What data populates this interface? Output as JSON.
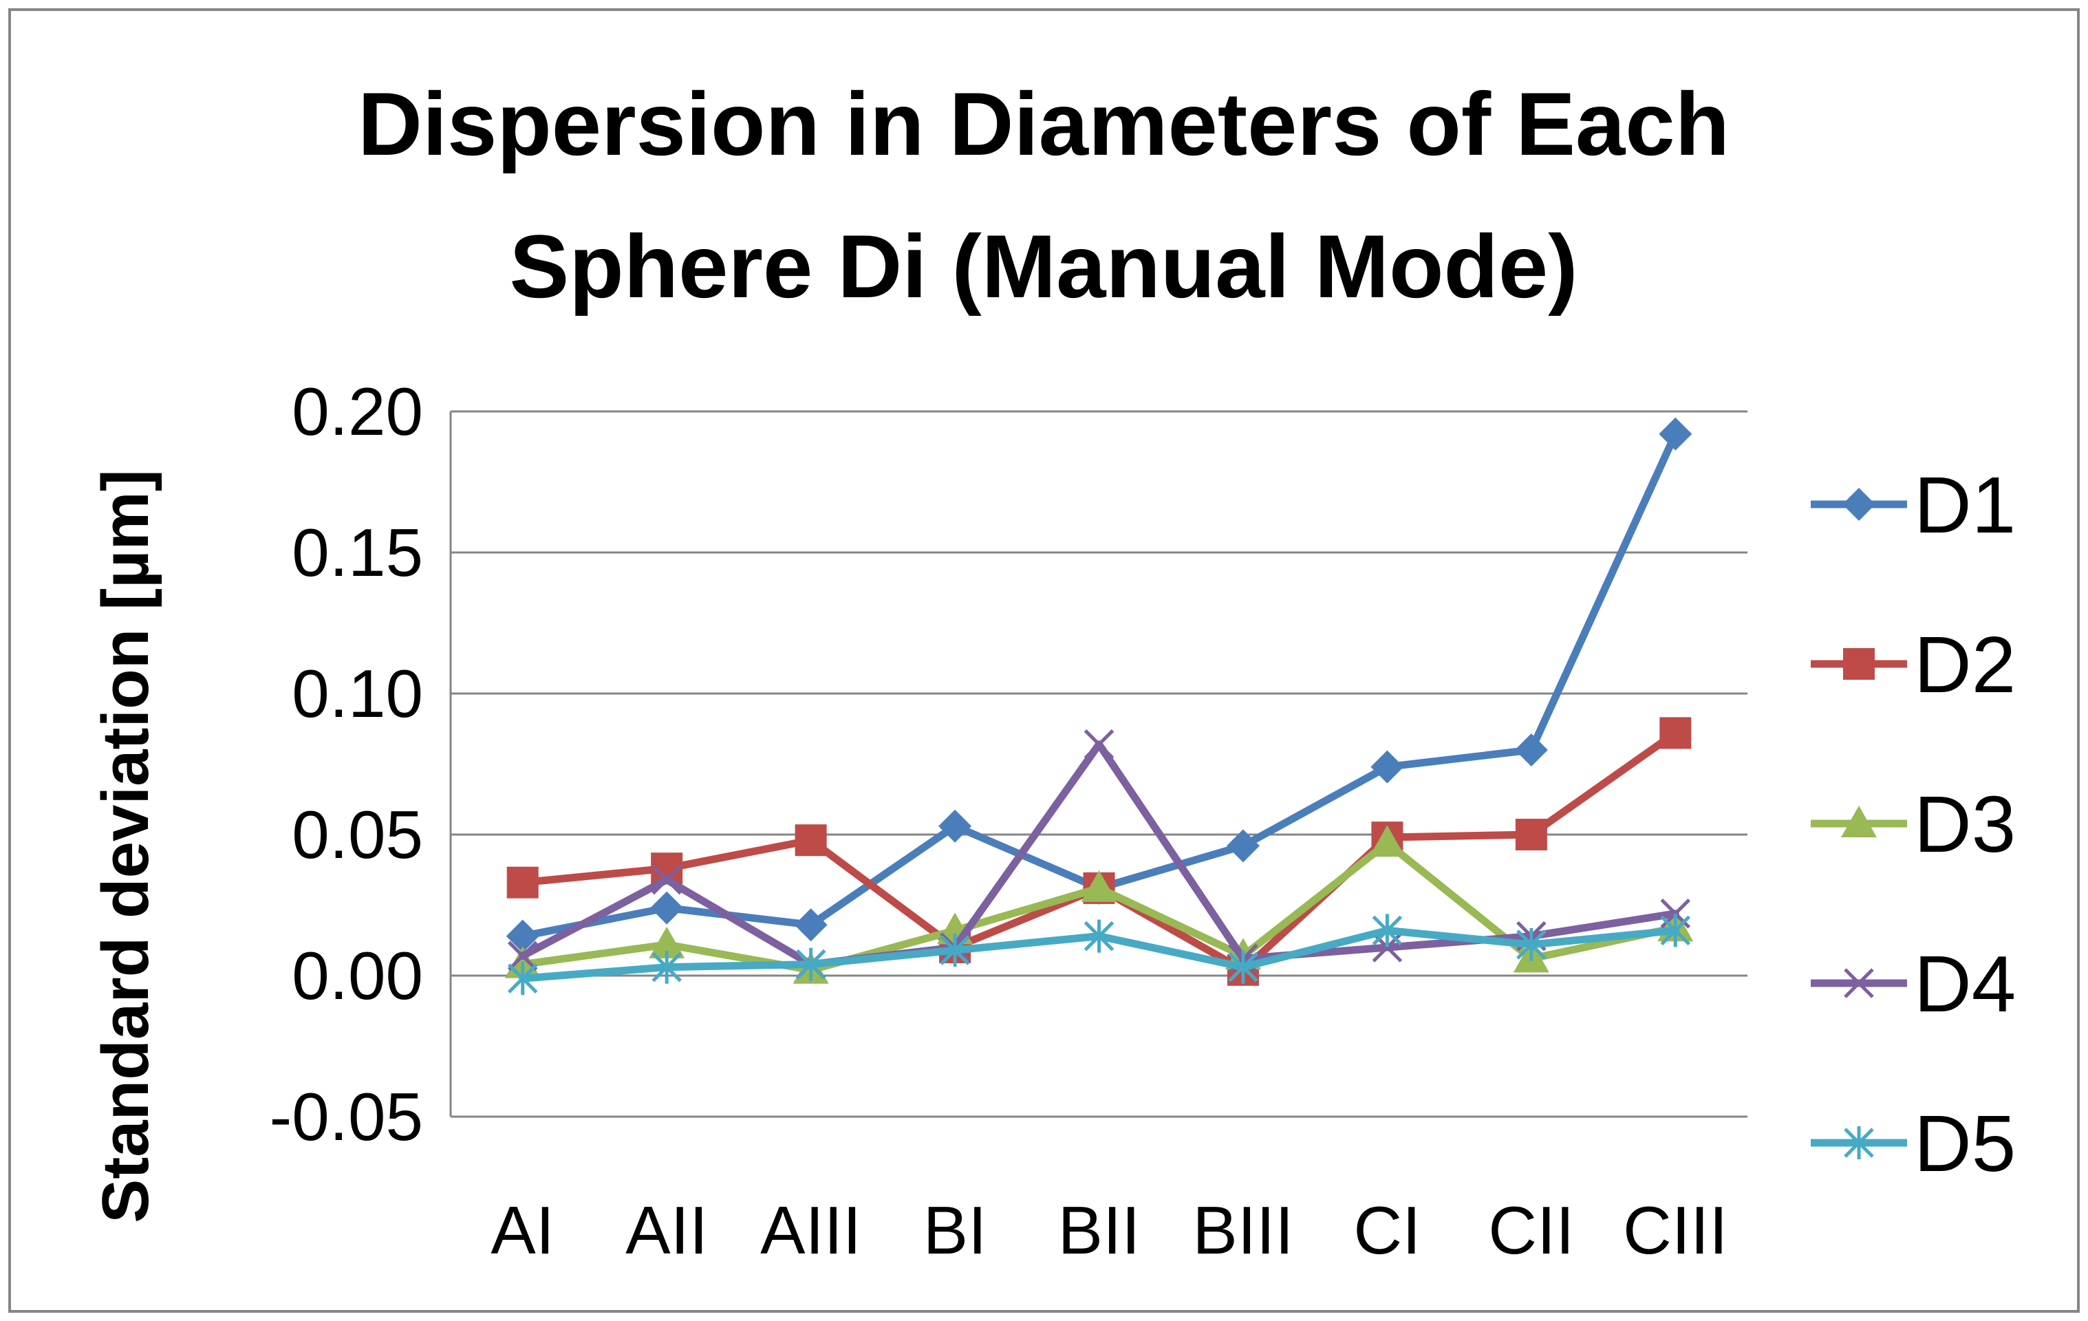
{
  "chart_data": {
    "type": "line",
    "title_lines": [
      "Dispersion in Diameters of Each",
      "Sphere Di (Manual Mode)"
    ],
    "xlabel": "",
    "ylabel": "Standard deviation [µm]",
    "categories": [
      "AI",
      "AII",
      "AIII",
      "BI",
      "BII",
      "BIII",
      "CI",
      "CII",
      "CIII"
    ],
    "ylim": [
      -0.05,
      0.2
    ],
    "yticks": [
      -0.05,
      0.0,
      0.05,
      0.1,
      0.15,
      0.2
    ],
    "ytick_labels": [
      "-0.05",
      "0.00",
      "0.05",
      "0.10",
      "0.15",
      "0.20"
    ],
    "grid": "horizontal",
    "legend_position": "right",
    "series": [
      {
        "name": "D1",
        "color": "#4a7ebb",
        "marker": "diamond",
        "values": [
          0.014,
          0.024,
          0.018,
          0.053,
          0.031,
          0.046,
          0.074,
          0.08,
          0.192
        ]
      },
      {
        "name": "D2",
        "color": "#be4b48",
        "marker": "square",
        "values": [
          0.033,
          0.038,
          0.048,
          0.01,
          0.031,
          0.002,
          0.049,
          0.05,
          0.086
        ]
      },
      {
        "name": "D3",
        "color": "#98b954",
        "marker": "triangle",
        "values": [
          0.004,
          0.011,
          0.002,
          0.016,
          0.031,
          0.007,
          0.047,
          0.006,
          0.017
        ]
      },
      {
        "name": "D4",
        "color": "#7d60a0",
        "marker": "x",
        "values": [
          0.007,
          0.034,
          0.004,
          0.01,
          0.082,
          0.006,
          0.01,
          0.014,
          0.022
        ]
      },
      {
        "name": "D5",
        "color": "#46aac5",
        "marker": "asterisk",
        "values": [
          -0.001,
          0.003,
          0.004,
          0.009,
          0.014,
          0.003,
          0.016,
          0.011,
          0.016
        ]
      }
    ]
  }
}
